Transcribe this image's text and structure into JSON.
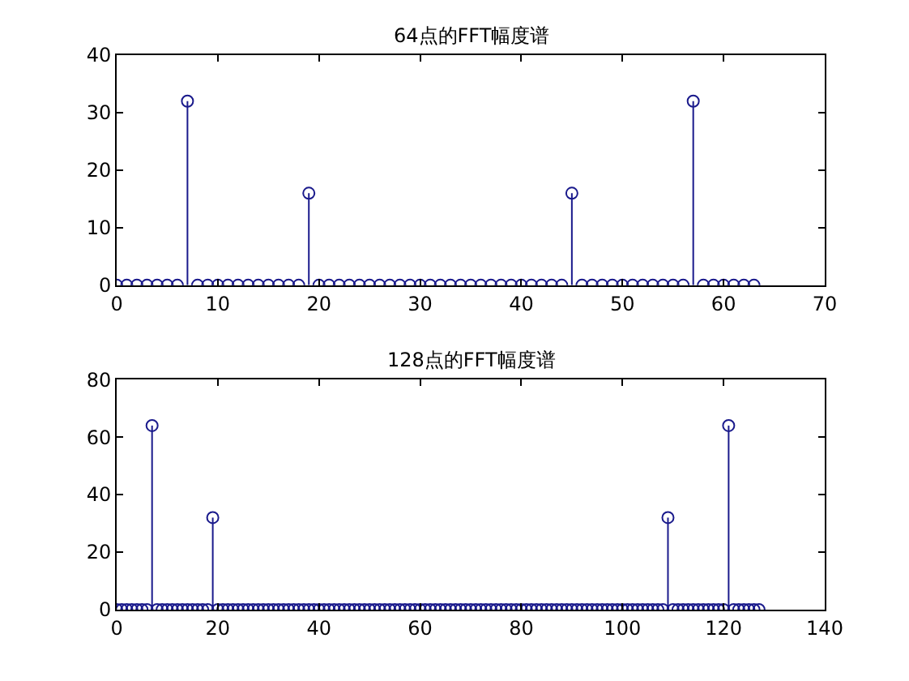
{
  "chart_data": [
    {
      "type": "lollipop",
      "title": "64点的FFT幅度谱",
      "marker": "circle",
      "grid": false,
      "xlim": [
        0,
        70
      ],
      "xticks": [
        0,
        10,
        20,
        30,
        40,
        50,
        60,
        70
      ],
      "ylim": [
        0,
        40
      ],
      "yticks": [
        0,
        10,
        20,
        30,
        40
      ],
      "series": [
        {
          "color": "#1a1a8c",
          "x": [
            0,
            1,
            2,
            3,
            4,
            5,
            6,
            7,
            8,
            9,
            10,
            11,
            12,
            13,
            14,
            15,
            16,
            17,
            18,
            19,
            20,
            21,
            22,
            23,
            24,
            25,
            26,
            27,
            28,
            29,
            30,
            31,
            32,
            33,
            34,
            35,
            36,
            37,
            38,
            39,
            40,
            41,
            42,
            43,
            44,
            45,
            46,
            47,
            48,
            49,
            50,
            51,
            52,
            53,
            54,
            55,
            56,
            57,
            58,
            59,
            60,
            61,
            62,
            63
          ],
          "values": [
            0,
            0,
            0,
            0,
            0,
            0,
            0,
            32,
            0,
            0,
            0,
            0,
            0,
            0,
            0,
            0,
            0,
            0,
            0,
            16,
            0,
            0,
            0,
            0,
            0,
            0,
            0,
            0,
            0,
            0,
            0,
            0,
            0,
            0,
            0,
            0,
            0,
            0,
            0,
            0,
            0,
            0,
            0,
            0,
            0,
            16,
            0,
            0,
            0,
            0,
            0,
            0,
            0,
            0,
            0,
            0,
            0,
            32,
            0,
            0,
            0,
            0,
            0,
            0
          ]
        }
      ]
    },
    {
      "type": "lollipop",
      "title": "128点的FFT幅度谱",
      "marker": "circle",
      "grid": false,
      "xlim": [
        0,
        140
      ],
      "xticks": [
        0,
        20,
        40,
        60,
        80,
        100,
        120,
        140
      ],
      "ylim": [
        0,
        80
      ],
      "yticks": [
        0,
        20,
        40,
        60,
        80
      ],
      "series": [
        {
          "color": "#1a1a8c",
          "x": [
            0,
            1,
            2,
            3,
            4,
            5,
            6,
            7,
            8,
            9,
            10,
            11,
            12,
            13,
            14,
            15,
            16,
            17,
            18,
            19,
            20,
            21,
            22,
            23,
            24,
            25,
            26,
            27,
            28,
            29,
            30,
            31,
            32,
            33,
            34,
            35,
            36,
            37,
            38,
            39,
            40,
            41,
            42,
            43,
            44,
            45,
            46,
            47,
            48,
            49,
            50,
            51,
            52,
            53,
            54,
            55,
            56,
            57,
            58,
            59,
            60,
            61,
            62,
            63,
            64,
            65,
            66,
            67,
            68,
            69,
            70,
            71,
            72,
            73,
            74,
            75,
            76,
            77,
            78,
            79,
            80,
            81,
            82,
            83,
            84,
            85,
            86,
            87,
            88,
            89,
            90,
            91,
            92,
            93,
            94,
            95,
            96,
            97,
            98,
            99,
            100,
            101,
            102,
            103,
            104,
            105,
            106,
            107,
            108,
            109,
            110,
            111,
            112,
            113,
            114,
            115,
            116,
            117,
            118,
            119,
            120,
            121,
            122,
            123,
            124,
            125,
            126,
            127
          ],
          "values": [
            0,
            0,
            0,
            0,
            0,
            0,
            0,
            64,
            0,
            0,
            0,
            0,
            0,
            0,
            0,
            0,
            0,
            0,
            0,
            32,
            0,
            0,
            0,
            0,
            0,
            0,
            0,
            0,
            0,
            0,
            0,
            0,
            0,
            0,
            0,
            0,
            0,
            0,
            0,
            0,
            0,
            0,
            0,
            0,
            0,
            0,
            0,
            0,
            0,
            0,
            0,
            0,
            0,
            0,
            0,
            0,
            0,
            0,
            0,
            0,
            0,
            0,
            0,
            0,
            0,
            0,
            0,
            0,
            0,
            0,
            0,
            0,
            0,
            0,
            0,
            0,
            0,
            0,
            0,
            0,
            0,
            0,
            0,
            0,
            0,
            0,
            0,
            0,
            0,
            0,
            0,
            0,
            0,
            0,
            0,
            0,
            0,
            0,
            0,
            0,
            0,
            0,
            0,
            0,
            0,
            0,
            0,
            0,
            0,
            32,
            0,
            0,
            0,
            0,
            0,
            0,
            0,
            0,
            0,
            0,
            0,
            64,
            0,
            0,
            0,
            0,
            0,
            0
          ]
        }
      ]
    }
  ]
}
